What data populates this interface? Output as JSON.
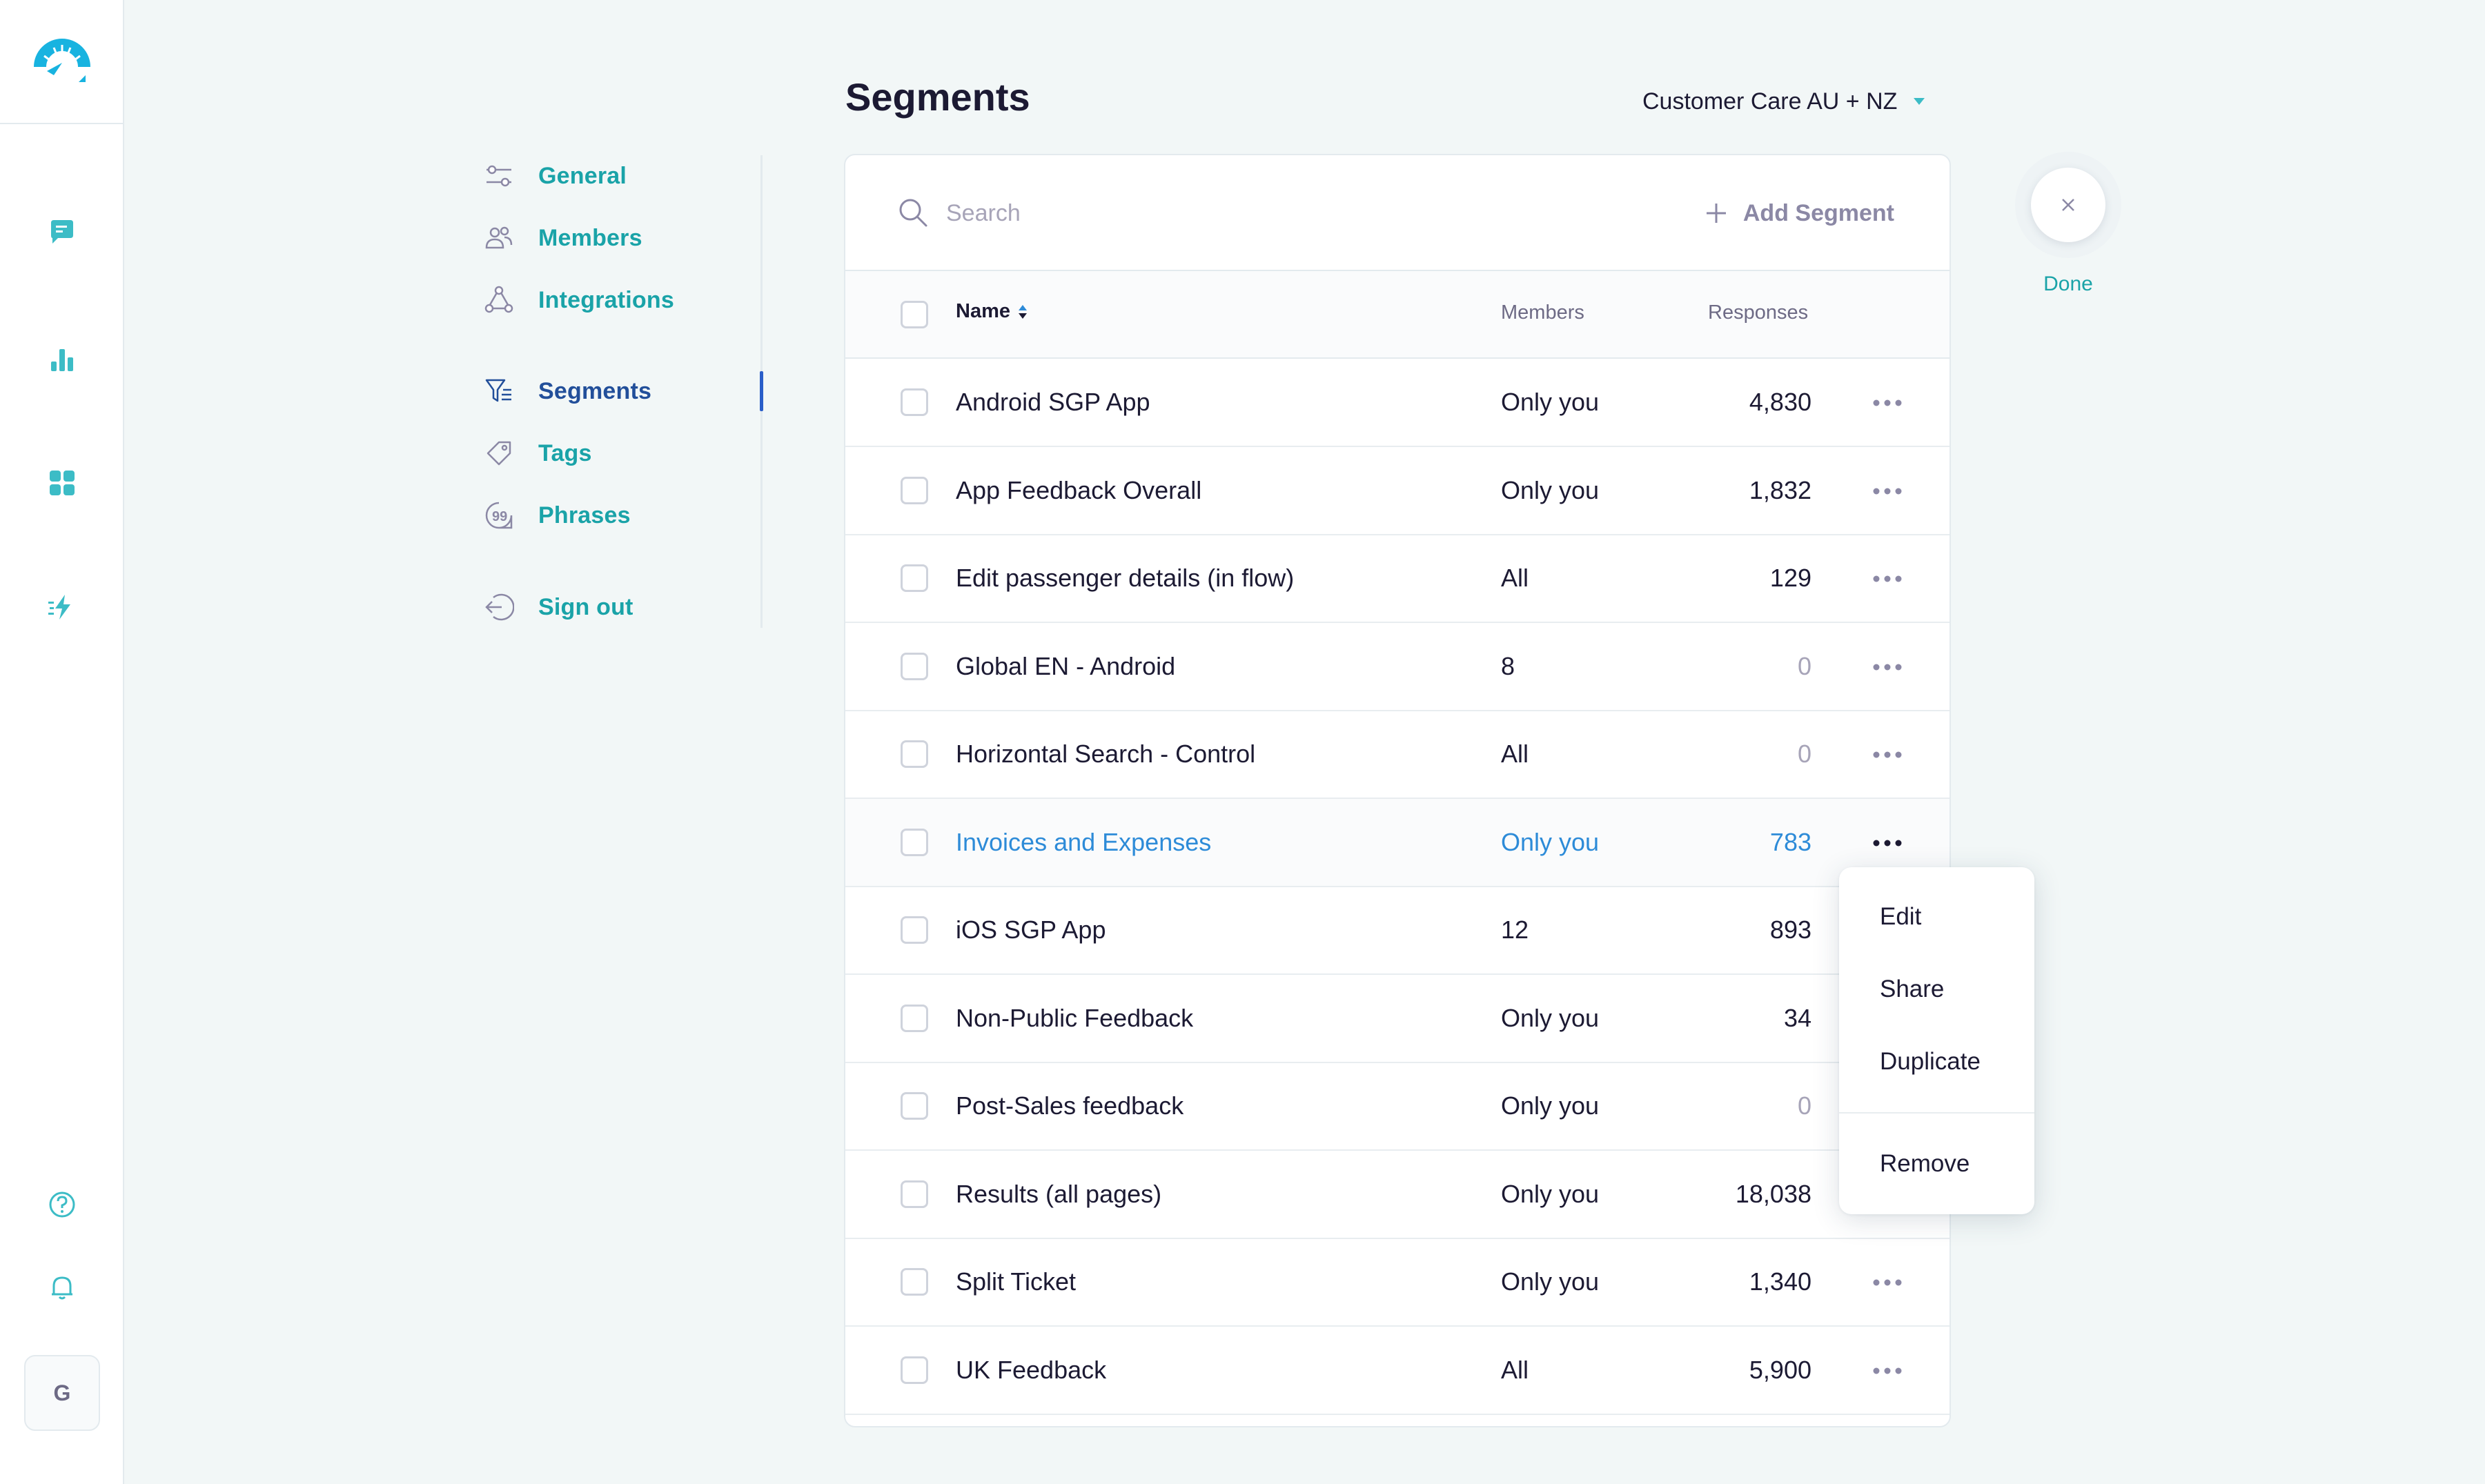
{
  "app": {
    "accent_color": "#1aa3a8",
    "active_color": "#224f9a",
    "highlight_color": "#2d8bd8"
  },
  "rail": {
    "logo_icon": "gauge-logo-icon",
    "items": [
      {
        "icon": "chat-icon"
      },
      {
        "icon": "bar-chart-icon"
      },
      {
        "icon": "grid-icon"
      },
      {
        "icon": "lightning-icon"
      }
    ],
    "bottom": [
      {
        "icon": "help-icon"
      },
      {
        "icon": "bell-icon"
      }
    ],
    "avatar_initial": "G"
  },
  "settings_nav": {
    "items": [
      {
        "label": "General",
        "icon": "sliders-icon"
      },
      {
        "label": "Members",
        "icon": "users-icon"
      },
      {
        "label": "Integrations",
        "icon": "integrations-icon"
      },
      {
        "label": "Segments",
        "icon": "segments-filter-icon",
        "active": true
      },
      {
        "label": "Tags",
        "icon": "tag-icon"
      },
      {
        "label": "Phrases",
        "icon": "quote-icon"
      },
      {
        "label": "Sign out",
        "icon": "sign-out-icon"
      }
    ]
  },
  "header": {
    "title": "Segments",
    "team_selector": "Customer Care AU + NZ"
  },
  "search": {
    "placeholder": "Search",
    "value": ""
  },
  "toolbar": {
    "add_segment_label": "Add Segment"
  },
  "table": {
    "columns": {
      "name": "Name",
      "members": "Members",
      "responses": "Responses"
    },
    "rows": [
      {
        "name": "Android SGP App",
        "members": "Only you",
        "responses": "4,830"
      },
      {
        "name": "App Feedback Overall",
        "members": "Only you",
        "responses": "1,832"
      },
      {
        "name": "Edit passenger details (in flow)",
        "members": "All",
        "responses": "129"
      },
      {
        "name": "Global EN - Android",
        "members": "8",
        "responses": "0"
      },
      {
        "name": "Horizontal Search - Control",
        "members": "All",
        "responses": "0"
      },
      {
        "name": "Invoices and Expenses",
        "members": "Only you",
        "responses": "783",
        "hover": true
      },
      {
        "name": "iOS SGP App",
        "members": "12",
        "responses": "893"
      },
      {
        "name": "Non-Public Feedback",
        "members": "Only you",
        "responses": "34"
      },
      {
        "name": "Post-Sales feedback",
        "members": "Only you",
        "responses": "0"
      },
      {
        "name": "Results (all pages)",
        "members": "Only you",
        "responses": "18,038"
      },
      {
        "name": "Split Ticket",
        "members": "Only you",
        "responses": "1,340"
      },
      {
        "name": "UK Feedback",
        "members": "All",
        "responses": "5,900"
      }
    ]
  },
  "context_menu": {
    "items": [
      "Edit",
      "Share",
      "Duplicate",
      "Remove"
    ]
  },
  "done": {
    "label": "Done"
  }
}
